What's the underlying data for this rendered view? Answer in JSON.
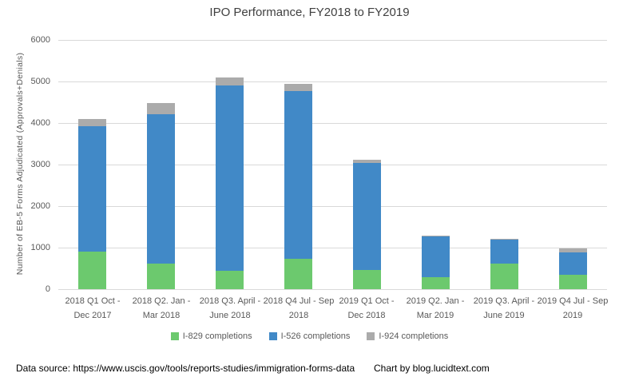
{
  "title": "IPO Performance, FY2018 to FY2019",
  "y_axis": {
    "label": "Number of EB-5 Forms Adjudicated (Approvals+Denials)",
    "ticks": [
      0,
      1000,
      2000,
      3000,
      4000,
      5000,
      6000
    ]
  },
  "footer": {
    "source": "Data source: https://www.uscis.gov/tools/reports-studies/immigration-forms-data",
    "credit": "Chart by blog.lucidtext.com"
  },
  "colors": {
    "grid": "#d9d9d9",
    "axis_text": "#595959",
    "title_text": "#404040",
    "i829_green": "#6cc96e",
    "i526_blue": "#4189c7",
    "i924_gray": "#ababab"
  },
  "chart_data": {
    "type": "bar",
    "stacked": true,
    "title": "IPO Performance, FY2018 to FY2019",
    "xlabel": "",
    "ylabel": "Number of EB-5 Forms Adjudicated (Approvals+Denials)",
    "ylim": [
      0,
      6000
    ],
    "ytick_step": 1000,
    "grid": true,
    "legend_position": "bottom",
    "categories": [
      [
        "2018 Q1 Oct -",
        "Dec 2017"
      ],
      [
        "2018 Q2. Jan -",
        "Mar 2018"
      ],
      [
        "2018 Q3. April -",
        "June 2018"
      ],
      [
        "2018 Q4 Jul - Sep",
        "2018"
      ],
      [
        "2019 Q1 Oct -",
        "Dec 2018"
      ],
      [
        "2019 Q2. Jan -",
        "Mar 2019"
      ],
      [
        "2019 Q3. April -",
        "June 2019"
      ],
      [
        "2019 Q4 Jul - Sep",
        "2019"
      ]
    ],
    "series": [
      {
        "name": "I-829 completions",
        "color": "#6cc96e",
        "values": [
          900,
          620,
          450,
          730,
          460,
          280,
          620,
          350
        ]
      },
      {
        "name": "I-526 completions",
        "color": "#4189c7",
        "values": [
          3030,
          3600,
          4460,
          4040,
          2570,
          980,
          580,
          540
        ]
      },
      {
        "name": "I-924 completions",
        "color": "#ababab",
        "values": [
          160,
          270,
          190,
          180,
          80,
          20,
          20,
          85
        ]
      }
    ]
  }
}
